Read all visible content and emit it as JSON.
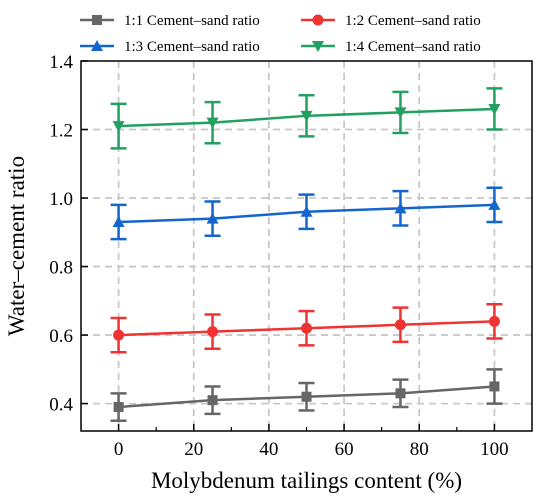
{
  "chart_data": {
    "type": "line",
    "xlabel": "Molybdenum tailings content (%)",
    "ylabel": "Water–cement ratio",
    "xlim": [
      -10,
      110
    ],
    "ylim": [
      0.32,
      1.4
    ],
    "xticks": [
      0,
      20,
      40,
      60,
      80,
      100
    ],
    "yticks": [
      0.4,
      0.6,
      0.8,
      1.0,
      1.2,
      1.4
    ],
    "xtick_labels": [
      "0",
      "20",
      "40",
      "60",
      "80",
      "100"
    ],
    "ytick_labels": [
      "0.4",
      "0.6",
      "0.8",
      "1.0",
      "1.2",
      "1.4"
    ],
    "grid": true,
    "legend_position": "top",
    "x": [
      0,
      25,
      50,
      75,
      100
    ],
    "series": [
      {
        "name": "1:1 Cement–sand ratio",
        "color": "#666666",
        "marker": "square",
        "values": [
          0.39,
          0.41,
          0.42,
          0.43,
          0.45
        ],
        "error": [
          0.04,
          0.04,
          0.04,
          0.04,
          0.05
        ]
      },
      {
        "name": "1:2 Cement–sand ratio",
        "color": "#ee3333",
        "marker": "circle",
        "values": [
          0.6,
          0.61,
          0.62,
          0.63,
          0.64
        ],
        "error": [
          0.05,
          0.05,
          0.05,
          0.05,
          0.05
        ]
      },
      {
        "name": "1:3 Cement–sand ratio",
        "color": "#1466cc",
        "marker": "triangle-up",
        "values": [
          0.93,
          0.94,
          0.96,
          0.97,
          0.98
        ],
        "error": [
          0.05,
          0.05,
          0.05,
          0.05,
          0.05
        ]
      },
      {
        "name": "1:4 Cement–sand ratio",
        "color": "#22a060",
        "marker": "triangle-down",
        "values": [
          1.21,
          1.22,
          1.24,
          1.25,
          1.26
        ],
        "error": [
          0.065,
          0.06,
          0.06,
          0.06,
          0.06
        ]
      }
    ]
  }
}
